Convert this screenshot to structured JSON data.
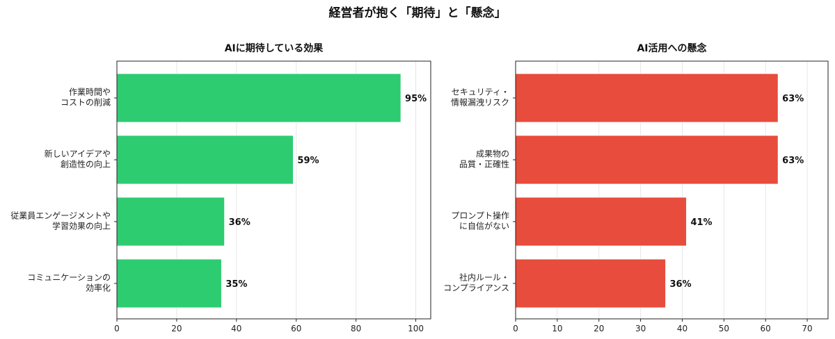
{
  "figure": {
    "title": "経営者が抱く「期待」と「懸念」"
  },
  "chart_data": [
    {
      "type": "bar",
      "orientation": "horizontal",
      "title": "AIに期待している効果",
      "categories": [
        [
          "作業時間や",
          "コストの削減"
        ],
        [
          "新しいアイデアや",
          "創造性の向上"
        ],
        [
          "従業員エンゲージメントや",
          "学習効果の向上"
        ],
        [
          "コミュニケーションの",
          "効率化"
        ]
      ],
      "values": [
        95,
        59,
        36,
        35
      ],
      "value_labels": [
        "95%",
        "59%",
        "36%",
        "35%"
      ],
      "xlim": [
        0,
        105
      ],
      "xticks": [
        0,
        20,
        40,
        60,
        80,
        100
      ],
      "color": "#2ecc71",
      "grid": "x"
    },
    {
      "type": "bar",
      "orientation": "horizontal",
      "title": "AI活用への懸念",
      "categories": [
        [
          "セキュリティ・",
          "情報漏洩リスク"
        ],
        [
          "成果物の",
          "品質・正確性"
        ],
        [
          "プロンプト操作",
          "に自信がない"
        ],
        [
          "社内ルール・",
          "コンプライアンス"
        ]
      ],
      "values": [
        63,
        63,
        41,
        36
      ],
      "value_labels": [
        "63%",
        "63%",
        "41%",
        "36%"
      ],
      "xlim": [
        0,
        75
      ],
      "xticks": [
        0,
        10,
        20,
        30,
        40,
        50,
        60,
        70
      ],
      "color": "#e74c3c",
      "grid": "x"
    }
  ]
}
